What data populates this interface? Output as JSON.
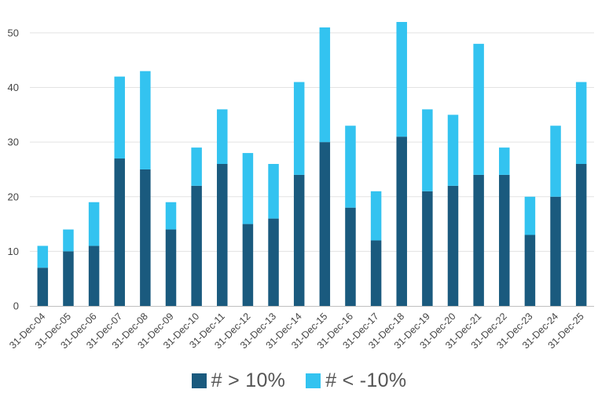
{
  "chart_data": {
    "type": "bar",
    "stacked": true,
    "categories": [
      "31-Dec-04",
      "31-Dec-05",
      "31-Dec-06",
      "31-Dec-07",
      "31-Dec-08",
      "31-Dec-09",
      "31-Dec-10",
      "31-Dec-11",
      "31-Dec-12",
      "31-Dec-13",
      "31-Dec-14",
      "31-Dec-15",
      "31-Dec-16",
      "31-Dec-17",
      "31-Dec-18",
      "31-Dec-19",
      "31-Dec-20",
      "31-Dec-21",
      "31-Dec-22",
      "31-Dec-23",
      "31-Dec-24",
      "31-Dec-25"
    ],
    "series": [
      {
        "name": "# > 10%",
        "color": "#1a5a7e",
        "values": [
          7,
          10,
          11,
          27,
          25,
          14,
          22,
          26,
          15,
          16,
          24,
          30,
          18,
          12,
          31,
          21,
          22,
          24,
          24,
          13,
          20,
          26
        ]
      },
      {
        "name": "# < -10%",
        "color": "#33c3f0",
        "values": [
          4,
          4,
          8,
          15,
          18,
          5,
          7,
          10,
          13,
          10,
          17,
          21,
          15,
          9,
          21,
          15,
          13,
          24,
          5,
          7,
          13,
          15
        ]
      }
    ],
    "yticks": [
      0,
      10,
      20,
      30,
      40,
      50
    ],
    "ylim": [
      0,
      52
    ],
    "title": "",
    "xlabel": "",
    "ylabel": "",
    "grid": true,
    "legend_position": "bottom-center"
  }
}
